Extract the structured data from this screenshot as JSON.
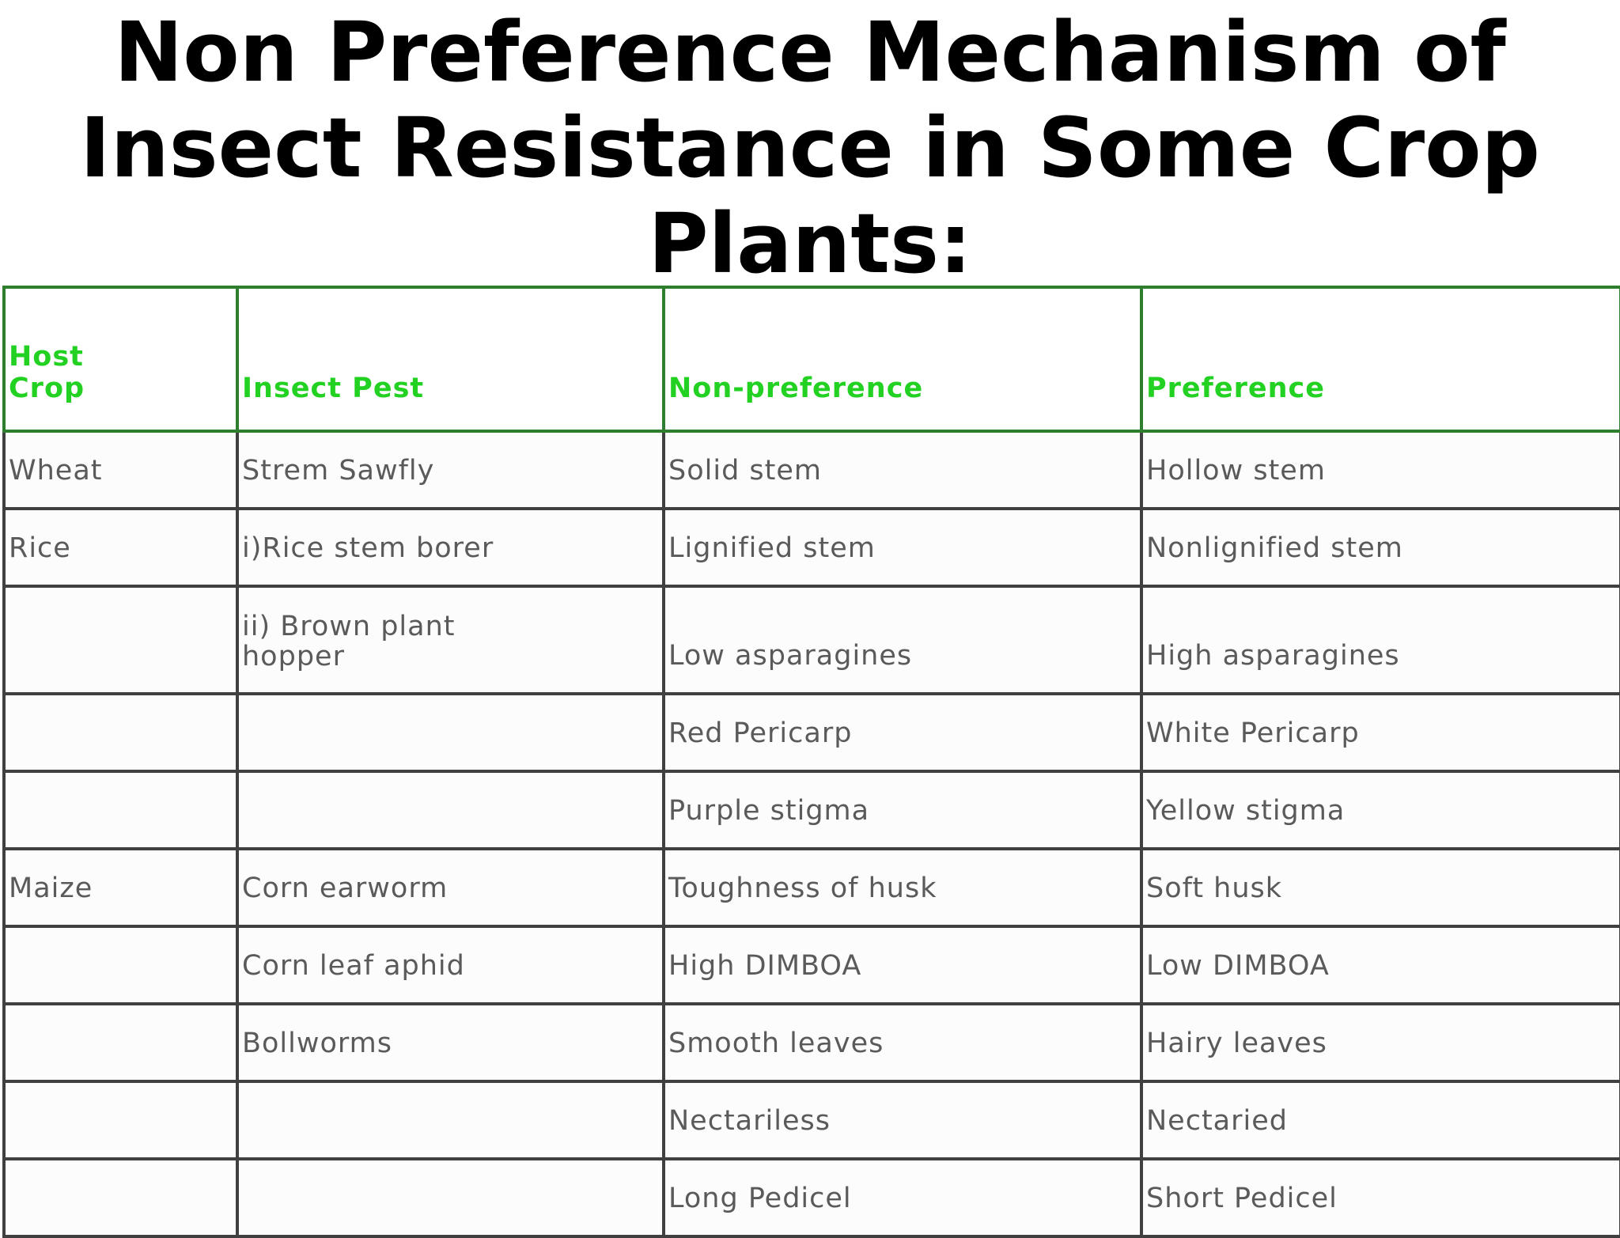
{
  "title": {
    "line1": "Non Preference Mechanism of",
    "line2": "Insect Resistance in Some Crop",
    "line3": "Plants:"
  },
  "table": {
    "headers": [
      "Host Crop",
      "Insect Pest",
      "Non-preference",
      "Preference"
    ],
    "rows": [
      [
        "Wheat",
        "Strem Sawfly",
        "Solid stem",
        "Hollow stem"
      ],
      [
        "Rice",
        "i)Rice stem borer",
        "Lignified stem",
        "Nonlignified stem"
      ],
      [
        "",
        "ii) Brown plant hopper",
        "Low asparagines",
        "High asparagines"
      ],
      [
        "",
        "",
        "Red Pericarp",
        "White Pericarp"
      ],
      [
        "",
        "",
        "Purple stigma",
        "Yellow stigma"
      ],
      [
        "Maize",
        "Corn earworm",
        "Toughness of husk",
        "Soft husk"
      ],
      [
        "",
        "Corn leaf aphid",
        "High DIMBOA",
        "Low DIMBOA"
      ],
      [
        "",
        "Bollworms",
        "Smooth leaves",
        "Hairy leaves"
      ],
      [
        "",
        "",
        "Nectariless",
        "Nectaried"
      ],
      [
        "",
        "",
        "Long Pedicel",
        "Short Pedicel"
      ]
    ]
  }
}
